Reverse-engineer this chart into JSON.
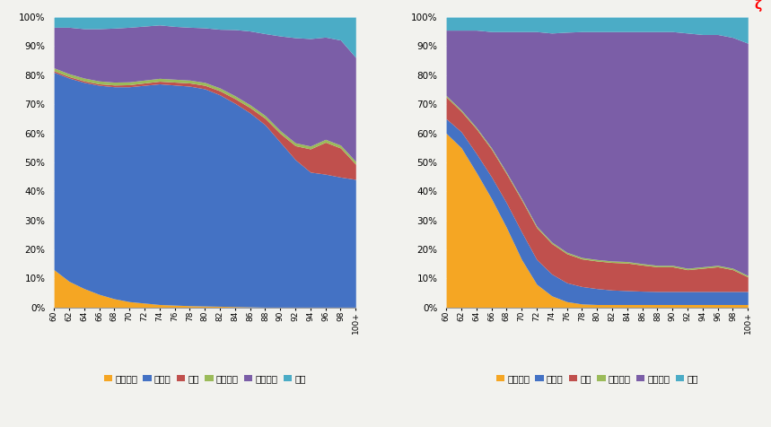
{
  "categories": [
    "60",
    "62",
    "64",
    "66",
    "68",
    "70",
    "72",
    "74",
    "76",
    "78",
    "80",
    "82",
    "84",
    "86",
    "88",
    "90",
    "92",
    "94",
    "96",
    "98",
    "100+"
  ],
  "chart1": {
    "劳动收入": [
      0.13,
      0.09,
      0.065,
      0.045,
      0.03,
      0.02,
      0.015,
      0.01,
      0.008,
      0.006,
      0.005,
      0.004,
      0.003,
      0.002,
      0.001,
      0.001,
      0.001,
      0.001,
      0.001,
      0.001,
      0.001
    ],
    "养老金": [
      0.68,
      0.7,
      0.71,
      0.72,
      0.73,
      0.74,
      0.75,
      0.76,
      0.758,
      0.756,
      0.748,
      0.728,
      0.7,
      0.668,
      0.628,
      0.568,
      0.508,
      0.465,
      0.458,
      0.448,
      0.44
    ],
    "低保": [
      0.005,
      0.005,
      0.005,
      0.005,
      0.006,
      0.007,
      0.008,
      0.009,
      0.01,
      0.011,
      0.012,
      0.014,
      0.016,
      0.018,
      0.022,
      0.03,
      0.048,
      0.08,
      0.11,
      0.1,
      0.052
    ],
    "财产收入": [
      0.01,
      0.01,
      0.01,
      0.01,
      0.01,
      0.01,
      0.01,
      0.01,
      0.01,
      0.01,
      0.01,
      0.01,
      0.01,
      0.01,
      0.01,
      0.01,
      0.01,
      0.01,
      0.01,
      0.01,
      0.01
    ],
    "家庭供养": [
      0.14,
      0.16,
      0.17,
      0.18,
      0.186,
      0.188,
      0.186,
      0.184,
      0.182,
      0.182,
      0.188,
      0.202,
      0.228,
      0.254,
      0.282,
      0.326,
      0.362,
      0.37,
      0.352,
      0.362,
      0.358
    ],
    "其他": [
      0.035,
      0.035,
      0.04,
      0.04,
      0.038,
      0.035,
      0.031,
      0.027,
      0.032,
      0.035,
      0.037,
      0.042,
      0.043,
      0.048,
      0.057,
      0.065,
      0.071,
      0.074,
      0.069,
      0.079,
      0.139
    ]
  },
  "chart2": {
    "劳动收入": [
      0.6,
      0.55,
      0.465,
      0.375,
      0.275,
      0.165,
      0.08,
      0.04,
      0.02,
      0.012,
      0.01,
      0.01,
      0.01,
      0.01,
      0.01,
      0.01,
      0.01,
      0.01,
      0.01,
      0.01,
      0.01
    ],
    "养老金": [
      0.05,
      0.055,
      0.065,
      0.075,
      0.085,
      0.095,
      0.085,
      0.075,
      0.065,
      0.06,
      0.055,
      0.05,
      0.048,
      0.046,
      0.045,
      0.045,
      0.045,
      0.045,
      0.045,
      0.045,
      0.045
    ],
    "低保": [
      0.075,
      0.07,
      0.085,
      0.095,
      0.1,
      0.11,
      0.11,
      0.105,
      0.1,
      0.095,
      0.095,
      0.095,
      0.095,
      0.09,
      0.085,
      0.085,
      0.075,
      0.08,
      0.085,
      0.075,
      0.05
    ],
    "财产收入": [
      0.005,
      0.005,
      0.005,
      0.005,
      0.005,
      0.005,
      0.005,
      0.005,
      0.005,
      0.005,
      0.005,
      0.005,
      0.005,
      0.005,
      0.005,
      0.005,
      0.005,
      0.005,
      0.005,
      0.005,
      0.005
    ],
    "家庭供养": [
      0.225,
      0.275,
      0.335,
      0.4,
      0.485,
      0.575,
      0.67,
      0.72,
      0.758,
      0.778,
      0.785,
      0.79,
      0.792,
      0.799,
      0.805,
      0.805,
      0.81,
      0.8,
      0.795,
      0.795,
      0.8
    ],
    "其他": [
      0.045,
      0.045,
      0.045,
      0.05,
      0.05,
      0.05,
      0.05,
      0.055,
      0.052,
      0.05,
      0.05,
      0.05,
      0.05,
      0.05,
      0.05,
      0.05,
      0.055,
      0.06,
      0.06,
      0.07,
      0.09
    ]
  },
  "colors": {
    "劳动收入": "#F5A623",
    "养老金": "#4472C4",
    "低保": "#C0504D",
    "财产收入": "#9BBB59",
    "家庭供养": "#7B5EA7",
    "其他": "#4BACC6"
  },
  "legend_labels": [
    "劳动收入",
    "养老金",
    "低保",
    "财产收入",
    "家庭供养",
    "其他"
  ],
  "background_color": "#F2F2EE",
  "yticks": [
    0.0,
    0.1,
    0.2,
    0.3,
    0.4,
    0.5,
    0.6,
    0.7,
    0.8,
    0.9,
    1.0
  ],
  "ytick_labels": [
    "0%",
    "10%",
    "20%",
    "30%",
    "40%",
    "50%",
    "60%",
    "70%",
    "80%",
    "90%",
    "100%"
  ]
}
